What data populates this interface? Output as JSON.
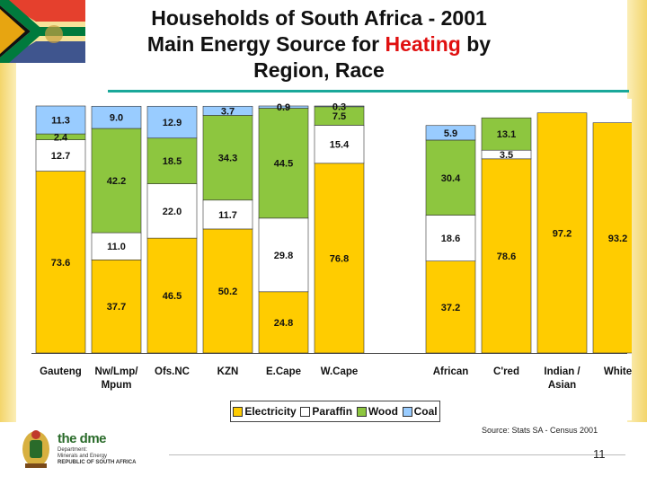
{
  "title": {
    "line1": "Households of South Africa - 2001",
    "line2_pre": "Main Energy Source for ",
    "line2_highlight": "Heating",
    "line2_post": " by",
    "line3": "Region, Race"
  },
  "source": "Source: Stats SA - Census 2001",
  "page_number": "11",
  "logo": {
    "brand": "the dme",
    "line1": "Department:",
    "line2": "Minerals and Energy",
    "line3": "REPUBLIC OF SOUTH AFRICA"
  },
  "colors": {
    "electricity": "#ffcc00",
    "paraffin": "#ffffff",
    "wood": "#8dc63f",
    "coal": "#99ccff",
    "title_highlight": "#e01010",
    "rule": "#1aa89a"
  },
  "chart_data": {
    "type": "bar",
    "stacked": true,
    "title": "Households of South Africa - 2001 Main Energy Source for Heating by Region, Race",
    "categories": [
      "Gauteng",
      "Nw/Lmp/ Mpum",
      "Ofs.NC",
      "KZN",
      "E.Cape",
      "W.Cape",
      "African",
      "C'red",
      "Indian / Asian",
      "White"
    ],
    "gap_after_index": 5,
    "series": [
      {
        "name": "Electricity",
        "color": "#ffcc00",
        "values": [
          73.6,
          37.7,
          46.5,
          50.2,
          24.8,
          76.8,
          37.2,
          78.6,
          97.2,
          93.2
        ]
      },
      {
        "name": "Paraffin",
        "color": "#ffffff",
        "values": [
          12.7,
          11.0,
          22.0,
          11.7,
          29.8,
          15.4,
          18.6,
          3.5,
          null,
          null
        ]
      },
      {
        "name": "Wood",
        "color": "#8dc63f",
        "values": [
          2.4,
          42.2,
          18.5,
          34.3,
          44.5,
          7.5,
          30.4,
          13.1,
          null,
          null
        ]
      },
      {
        "name": "Coal",
        "color": "#99ccff",
        "values": [
          11.3,
          9.0,
          12.9,
          3.7,
          0.9,
          0.3,
          5.9,
          null,
          null,
          null
        ]
      }
    ],
    "ylim": [
      0,
      100
    ],
    "xlabel": "",
    "ylabel": "",
    "legend": {
      "position": "bottom",
      "labels": [
        "Electricity",
        "Paraffin",
        "Wood",
        "Coal"
      ]
    }
  }
}
